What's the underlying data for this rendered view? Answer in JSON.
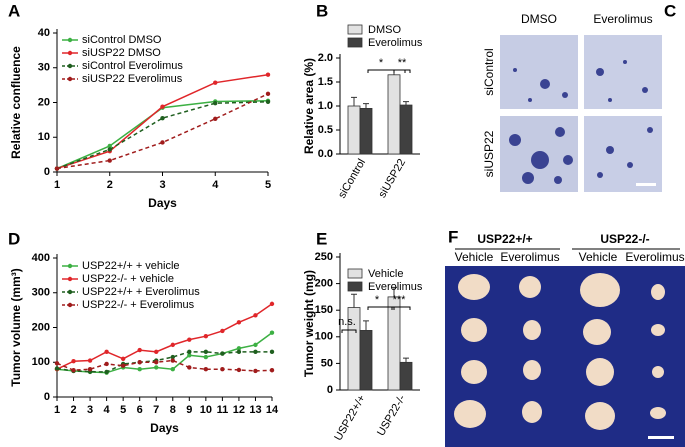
{
  "chart_data": [
    {
      "panel": "A",
      "type": "line",
      "xlabel": "Days",
      "ylabel": "Relative confluence",
      "x": [
        1,
        2,
        3,
        4,
        5
      ],
      "xlim": [
        1,
        5
      ],
      "xticks": [
        1,
        2,
        3,
        4,
        5
      ],
      "ylim": [
        0,
        40
      ],
      "yticks": [
        0,
        10,
        20,
        30,
        40
      ],
      "legend": "upper left",
      "series": [
        {
          "name": "siControl DMSO",
          "color": "#3cb043",
          "dash": false,
          "values": [
            1,
            7.5,
            18.5,
            20.3,
            20.5
          ]
        },
        {
          "name": "siUSP22 DMSO",
          "color": "#e0262a",
          "dash": false,
          "values": [
            1,
            6,
            18.8,
            25.7,
            28
          ]
        },
        {
          "name": "siControl Everolimus",
          "color": "#1f5f1f",
          "dash": true,
          "values": [
            1,
            6.5,
            15.5,
            19.8,
            20.2
          ]
        },
        {
          "name": "siUSP22 Everolimus",
          "color": "#a01c1c",
          "dash": true,
          "values": [
            1,
            3.3,
            8.5,
            15.3,
            22.5
          ]
        }
      ]
    },
    {
      "panel": "B",
      "type": "bar",
      "ylabel": "Relative area (%)",
      "categories": [
        "siControl",
        "siUSP22"
      ],
      "ylim": [
        0,
        2
      ],
      "yticks": [
        {
          "value": 0,
          "label": "0.0"
        },
        0.5,
        {
          "value": 1,
          "label": "1.0"
        },
        1.5,
        {
          "value": 2,
          "label": "2.0"
        }
      ],
      "legend": "top",
      "series": [
        {
          "name": "DMSO",
          "color": "#e2e2e2",
          "values": [
            1.0,
            1.65
          ],
          "errors": [
            0.18,
            0.1
          ]
        },
        {
          "name": "Everolimus",
          "color": "#404040",
          "values": [
            0.95,
            1.02
          ],
          "errors": [
            0.1,
            0.07
          ]
        }
      ],
      "annotations": [
        "*",
        "**"
      ]
    },
    {
      "panel": "D",
      "type": "line",
      "xlabel": "Days",
      "ylabel": "Tumor volume (mm³)",
      "x": [
        1,
        2,
        3,
        4,
        5,
        6,
        7,
        8,
        9,
        10,
        11,
        12,
        13,
        14
      ],
      "xlim": [
        1,
        14
      ],
      "xticks": [
        1,
        2,
        3,
        4,
        5,
        6,
        7,
        8,
        9,
        10,
        11,
        12,
        13,
        14
      ],
      "ylim": [
        0,
        400
      ],
      "yticks": [
        0,
        100,
        200,
        300,
        400
      ],
      "legend": "upper left",
      "series": [
        {
          "name": "USP22+/+ + vehicle",
          "color": "#3cb043",
          "dash": false,
          "values": [
            80,
            75,
            72,
            70,
            85,
            80,
            85,
            80,
            120,
            115,
            125,
            140,
            150,
            185
          ]
        },
        {
          "name": "USP22-/- + vehicle",
          "color": "#e0262a",
          "dash": false,
          "values": [
            80,
            103,
            105,
            130,
            110,
            135,
            130,
            150,
            165,
            175,
            190,
            215,
            235,
            268
          ]
        },
        {
          "name": "USP22+/+ + Everolimus",
          "color": "#1f5f1f",
          "dash": true,
          "values": [
            82,
            75,
            73,
            72,
            95,
            100,
            105,
            115,
            130,
            130,
            125,
            130,
            130,
            130
          ]
        },
        {
          "name": "USP22-/- + Everolimus",
          "color": "#a01c1c",
          "dash": true,
          "values": [
            97,
            77,
            80,
            95,
            90,
            100,
            100,
            105,
            85,
            80,
            80,
            78,
            75,
            77
          ]
        }
      ]
    },
    {
      "panel": "E",
      "type": "bar",
      "ylabel": "Tumor weight (mg)",
      "categories": [
        "USP22+/+",
        "USP22-/-"
      ],
      "ylim": [
        0,
        250
      ],
      "yticks": [
        0,
        50,
        100,
        150,
        200,
        250
      ],
      "legend": "top",
      "series": [
        {
          "name": "Vehicle",
          "color": "#e2e2e2",
          "values": [
            155,
            175
          ],
          "errors": [
            25,
            18
          ]
        },
        {
          "name": "Everolimus",
          "color": "#404040",
          "values": [
            112,
            52
          ],
          "errors": [
            18,
            8
          ]
        }
      ],
      "annotations": [
        "n.s.",
        "*",
        "***"
      ]
    }
  ],
  "panel_c": {
    "label": "C",
    "columns": [
      "DMSO",
      "Everolimus"
    ],
    "rows": [
      "siControl",
      "siUSP22"
    ]
  },
  "panel_f": {
    "label": "F",
    "groups": [
      "USP22+/+",
      "USP22-/-"
    ],
    "columns": [
      "Vehicle",
      "Everolimus",
      "Vehicle",
      "Everolimus"
    ]
  }
}
